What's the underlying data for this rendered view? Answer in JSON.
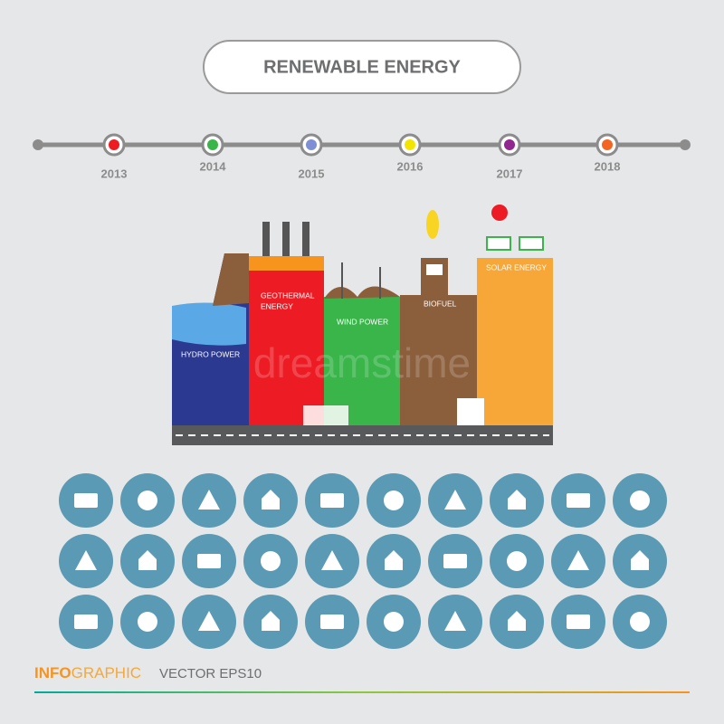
{
  "header": {
    "title": "RENEWABLE ENERGY"
  },
  "timeline": {
    "years": [
      "2013",
      "2014",
      "2015",
      "2016",
      "2017",
      "2018"
    ]
  },
  "sources": [
    {
      "lines": [
        "HYDRO POWER"
      ]
    },
    {
      "lines": [
        "GEOTHERMAL",
        "ENERGY"
      ]
    },
    {
      "lines": [
        "WIND POWER"
      ]
    },
    {
      "lines": [
        "BIOFUEL"
      ]
    },
    {
      "lines": [
        "SOLAR ENERGY"
      ]
    }
  ],
  "watermark": "dreamstime",
  "footer": {
    "info": "INFO",
    "graphic": "GRAPHIC",
    "vector": "VECTOR EPS10"
  }
}
